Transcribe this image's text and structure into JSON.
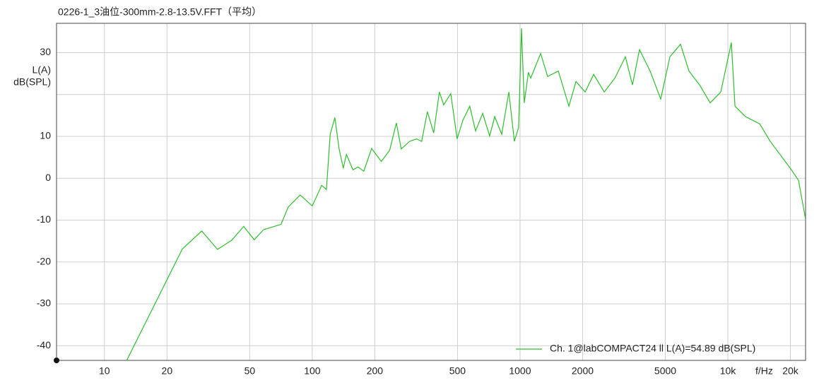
{
  "chart_data": {
    "type": "line",
    "title": "0226-1_3油位-300mm-2.8-13.5V.FFT（平均）",
    "ylabel": [
      "L(A)",
      "dB(SPL)"
    ],
    "xlabel": "f/Hz",
    "xscale": "log",
    "grid": true,
    "legend": "bottom-right",
    "xlim": [
      5.88,
      23660
    ],
    "ylim": [
      -43.5,
      37
    ],
    "xticks": [
      10,
      20,
      50,
      100,
      200,
      500,
      1000,
      2000,
      5000,
      {
        "value": 10000,
        "label": "10k"
      },
      {
        "value": 20000,
        "label": "20k"
      }
    ],
    "yticks": [
      -40,
      -30,
      -20,
      -10,
      0,
      10,
      30
    ],
    "ygrid_extra": [
      20
    ],
    "x": [
      12.8,
      23.7,
      29.4,
      35,
      41,
      46.8,
      52.6,
      58.2,
      70.8,
      76.6,
      87.5,
      100,
      111,
      117,
      122,
      128.5,
      134.6,
      141,
      146,
      157,
      166,
      177,
      193,
      215,
      236,
      254,
      268,
      294,
      318,
      336,
      358,
      384,
      409,
      429,
      464,
      498,
      530,
      573,
      611,
      661,
      714,
      755,
      816,
      883,
      939,
      984,
      1016,
      1048,
      1097,
      1125,
      1256,
      1358,
      1528,
      1718,
      1858,
      2057,
      2261,
      2542,
      2858,
      3213,
      3475,
      3758,
      4225,
      4752,
      5260,
      5916,
      6500,
      7310,
      8222,
      9245,
      10400,
      10820,
      12160,
      14220,
      16000,
      17990,
      20230,
      21880,
      23660
    ],
    "series": [
      {
        "name": "Ch. 1@labCOMPACT24 ll L(A)=54.89 dB(SPL)",
        "color": "#2ebd2e",
        "values": [
          -43.5,
          -16.9,
          -12.6,
          -17,
          -14.8,
          -11.5,
          -14.7,
          -12.3,
          -11,
          -6.9,
          -4,
          -6.6,
          -1.7,
          -2.7,
          10.5,
          14.5,
          7.1,
          2.4,
          5.7,
          2,
          2.7,
          1.7,
          7.1,
          4,
          6.7,
          13.2,
          7,
          8.8,
          9.4,
          8.8,
          15.9,
          10.8,
          20.6,
          17.5,
          20.2,
          9.4,
          13.8,
          17.2,
          11.3,
          15.5,
          10.1,
          14.7,
          10.5,
          20.6,
          8.8,
          12.1,
          35.8,
          18,
          25.3,
          23.9,
          29.8,
          24.3,
          25.6,
          17.2,
          23.1,
          20.6,
          24.8,
          20.6,
          23.9,
          29,
          22.3,
          30.7,
          25.6,
          18.9,
          29,
          32,
          25.6,
          22.3,
          18,
          20.6,
          32.4,
          17.2,
          14.7,
          13,
          8.8,
          5.4,
          2,
          -0.5,
          -9.8
        ]
      }
    ]
  }
}
